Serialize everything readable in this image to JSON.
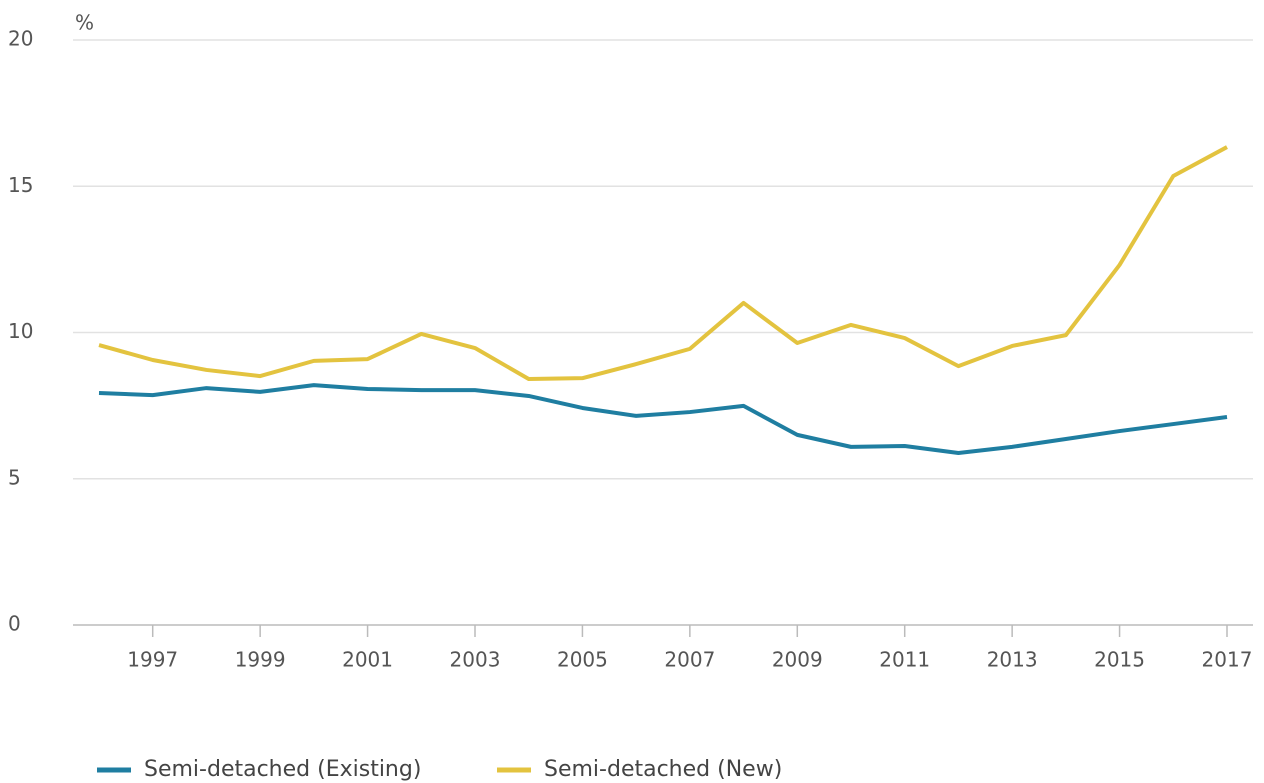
{
  "chart_data": {
    "type": "line",
    "y_label": "%",
    "x": [
      1996,
      1997,
      1998,
      1999,
      2000,
      2001,
      2002,
      2003,
      2004,
      2005,
      2006,
      2007,
      2008,
      2009,
      2010,
      2011,
      2012,
      2013,
      2014,
      2015,
      2016,
      2017
    ],
    "series": [
      {
        "name": "Semi-detached (Existing)",
        "color": "#1f7ea1",
        "values": [
          7.93,
          7.86,
          8.1,
          7.97,
          8.2,
          8.07,
          8.03,
          8.03,
          7.83,
          7.42,
          7.15,
          7.28,
          7.49,
          6.5,
          6.09,
          6.12,
          5.88,
          6.09,
          6.36,
          6.63,
          6.87,
          7.11
        ]
      },
      {
        "name": "Semi-detached (New)",
        "color": "#e3c33f",
        "values": [
          9.57,
          9.06,
          8.72,
          8.51,
          9.03,
          9.09,
          9.95,
          9.47,
          8.41,
          8.44,
          8.92,
          9.44,
          11.01,
          9.64,
          10.26,
          9.81,
          8.85,
          9.54,
          9.91,
          12.31,
          15.35,
          16.34
        ]
      }
    ],
    "xlim": [
      1996,
      2017
    ],
    "xticks": [
      1997,
      1999,
      2001,
      2003,
      2005,
      2007,
      2009,
      2011,
      2013,
      2015,
      2017
    ],
    "ylim": [
      0,
      20
    ],
    "yticks": [
      0,
      5,
      10,
      15,
      20
    ],
    "grid": true,
    "legend": "bottom"
  }
}
